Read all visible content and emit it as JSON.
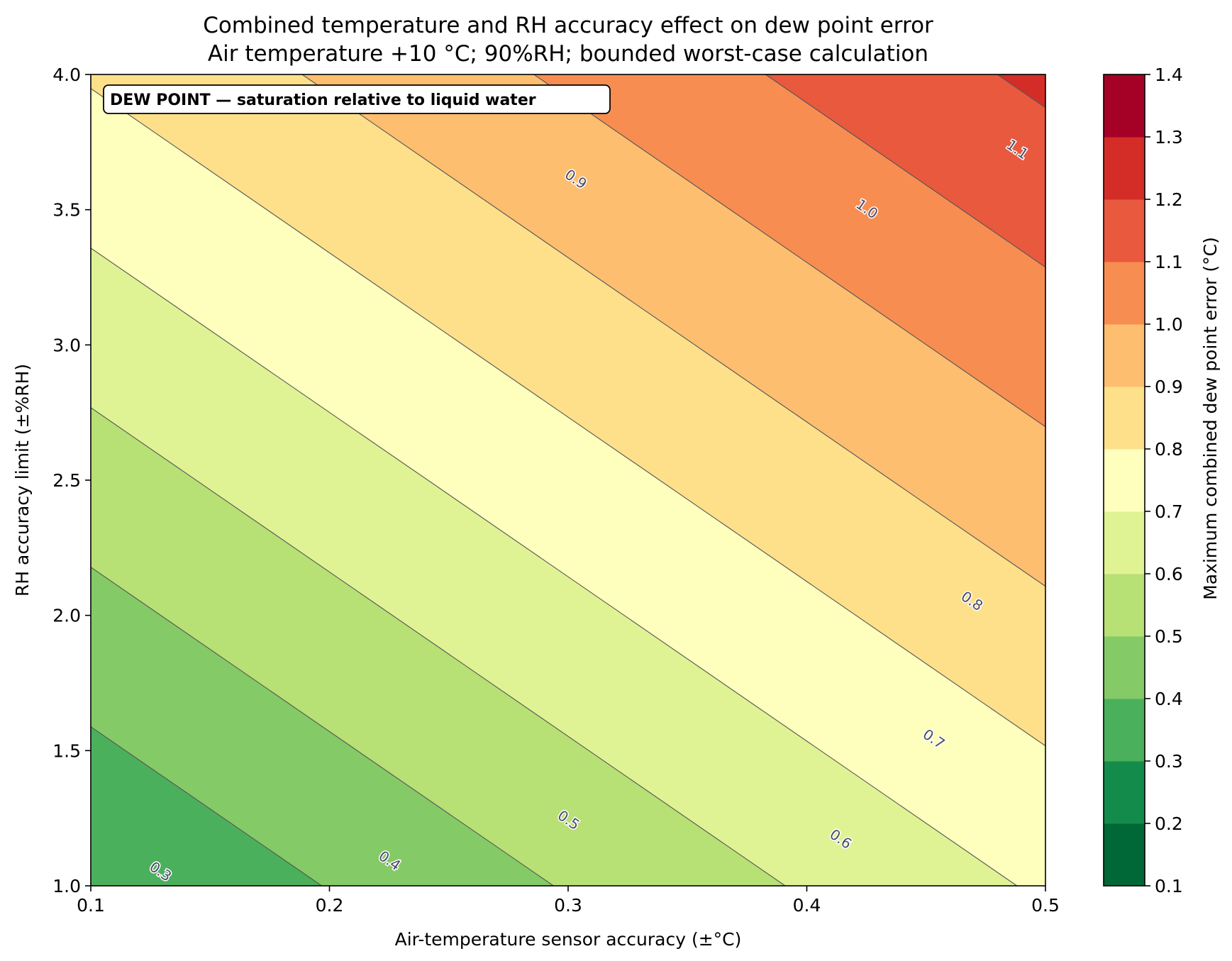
{
  "chart_data": {
    "type": "heatmap",
    "subtype": "filled-contour",
    "title": "Combined temperature and RH accuracy effect on dew point error",
    "subtitle": "Air temperature +10 °C; 90%RH; bounded worst-case calculation",
    "xlabel": "Air-temperature sensor accuracy (±°C)",
    "ylabel": "RH accuracy limit (±%RH)",
    "colorbar_label": "Maximum combined dew point error (°C)",
    "annotation": "DEW POINT — saturation relative to liquid water",
    "annotation_placement": "top-left",
    "xlim": [
      0.1,
      0.5
    ],
    "ylim": [
      1.0,
      4.0
    ],
    "xticks": [
      "0.1",
      "0.2",
      "0.3",
      "0.4",
      "0.5"
    ],
    "yticks": [
      "1.0",
      "1.5",
      "2.0",
      "2.5",
      "3.0",
      "3.5",
      "4.0"
    ],
    "colorbar_ticks": [
      "0.1",
      "0.2",
      "0.3",
      "0.4",
      "0.5",
      "0.6",
      "0.7",
      "0.8",
      "0.9",
      "1.0",
      "1.1",
      "1.2",
      "1.3",
      "1.4"
    ],
    "colorbar_range": [
      0.1,
      1.4
    ],
    "model": {
      "description": "error = a*temp_accuracy + b*rh_accuracy + c",
      "a": 1.03,
      "b": 0.1695,
      "c": 0.0278
    },
    "levels": [
      0.1,
      0.2,
      0.3,
      0.4,
      0.5,
      0.6,
      0.7,
      0.8,
      0.9,
      1.0,
      1.1,
      1.2,
      1.3,
      1.4
    ],
    "level_colors": [
      "#006837",
      "#138b4a",
      "#4bb05c",
      "#84ca66",
      "#b7e075",
      "#e0f394",
      "#fefebd",
      "#fee08b",
      "#fdbe6f",
      "#f88d51",
      "#e9593e",
      "#d42d27",
      "#a50026"
    ],
    "contour_line_color": "#555555",
    "contour_labels": [
      {
        "text": "0.3",
        "x": 0.129,
        "y": 1.05
      },
      {
        "text": "0.4",
        "x": 0.225,
        "y": 1.09
      },
      {
        "text": "0.5",
        "x": 0.3,
        "y": 1.24
      },
      {
        "text": "0.6",
        "x": 0.414,
        "y": 1.17
      },
      {
        "text": "0.7",
        "x": 0.453,
        "y": 1.54
      },
      {
        "text": "0.8",
        "x": 0.469,
        "y": 2.05
      },
      {
        "text": "0.9",
        "x": 0.303,
        "y": 3.61
      },
      {
        "text": "1.0",
        "x": 0.425,
        "y": 3.5
      },
      {
        "text": "1.1",
        "x": 0.488,
        "y": 3.72
      }
    ],
    "legend": "none",
    "grid": false
  }
}
